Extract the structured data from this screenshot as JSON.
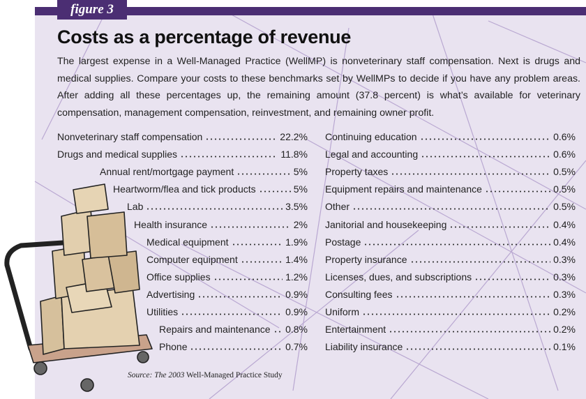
{
  "header": {
    "tab": "figure 3",
    "title": "Costs as a percentage of revenue",
    "description": "The largest expense in a Well-Managed Practice (WellMP) is nonveterinary staff compensation. Next is drugs and medical supplies. Compare your costs to these benchmarks set by WellMPs to decide if you have any problem areas. After adding all these percentages up, the remaining amount (37.8 percent) is what’s available for veterinary compensation, management compensation, reinvestment, and remaining owner profit."
  },
  "left_list": [
    {
      "label": "Nonveterinary staff compensation",
      "value": "22.2%"
    },
    {
      "label": "Drugs and medical supplies",
      "value": "11.8%"
    },
    {
      "label": "Annual rent/mortgage payment",
      "value": "5%"
    },
    {
      "label": "Heartworm/flea and tick products",
      "value": "5%"
    },
    {
      "label": "Lab",
      "value": "3.5%"
    },
    {
      "label": "Health insurance",
      "value": "2%"
    },
    {
      "label": "Medical equipment",
      "value": "1.9%"
    },
    {
      "label": "Computer equipment",
      "value": "1.4%"
    },
    {
      "label": "Office supplies",
      "value": "1.2%"
    },
    {
      "label": "Advertising",
      "value": "0.9%"
    },
    {
      "label": "Utilities",
      "value": "0.9%"
    },
    {
      "label": "Repairs and maintenance",
      "value": "0.8%"
    },
    {
      "label": "Phone",
      "value": "0.7%"
    }
  ],
  "right_list": [
    {
      "label": "Continuing education",
      "value": "0.6%"
    },
    {
      "label": "Legal and accounting",
      "value": "0.6%"
    },
    {
      "label": "Property taxes",
      "value": "0.5%"
    },
    {
      "label": "Equipment repairs and maintenance",
      "value": "0.5%"
    },
    {
      "label": "Other",
      "value": "0.5%"
    },
    {
      "label": "Janitorial and housekeeping",
      "value": "0.4%"
    },
    {
      "label": "Postage",
      "value": "0.4%"
    },
    {
      "label": "Property insurance",
      "value": "0.3%"
    },
    {
      "label": "Licenses, dues, and subscriptions",
      "value": "0.3%"
    },
    {
      "label": "Consulting fees",
      "value": "0.3%"
    },
    {
      "label": "Uniform",
      "value": "0.2%"
    },
    {
      "label": "Entertainment",
      "value": "0.2%"
    },
    {
      "label": "Liability insurance",
      "value": "0.1%"
    }
  ],
  "source": {
    "italic": "Source: The 2003",
    "rest": "Well-Managed Practice Study"
  }
}
